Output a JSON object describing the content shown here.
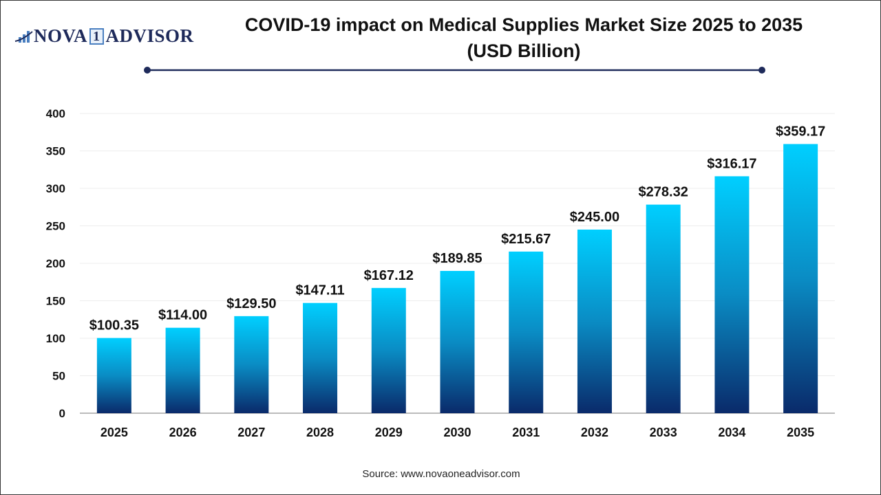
{
  "logo": {
    "text_left": "NOVA",
    "text_mid": "1",
    "text_right": "ADVISOR"
  },
  "title_line1": "COVID-19 impact on Medical Supplies Market Size 2025 to 2035",
  "title_line2": "(USD Billion)",
  "source": "Source: www.novaoneadvisor.com",
  "colors": {
    "bar_top": "#00cfff",
    "bar_bottom": "#0a2a6a",
    "title_rule": "#1e2a5a"
  },
  "chart_data": {
    "type": "bar",
    "title": "COVID-19 impact on Medical Supplies Market Size 2025 to 2035 (USD Billion)",
    "categories": [
      "2025",
      "2026",
      "2027",
      "2028",
      "2029",
      "2030",
      "2031",
      "2032",
      "2033",
      "2034",
      "2035"
    ],
    "values": [
      100.35,
      114.0,
      129.5,
      147.11,
      167.12,
      189.85,
      215.67,
      245.0,
      278.32,
      316.17,
      359.17
    ],
    "data_labels": [
      "$100.35",
      "$114.00",
      "$129.50",
      "$147.11",
      "$167.12",
      "$189.85",
      "$215.67",
      "$245.00",
      "$278.32",
      "$316.17",
      "$359.17"
    ],
    "yticks": [
      0,
      50,
      100,
      150,
      200,
      250,
      300,
      350,
      400
    ],
    "ylim": [
      0,
      400
    ],
    "grid": true,
    "xlabel": "",
    "ylabel": ""
  }
}
